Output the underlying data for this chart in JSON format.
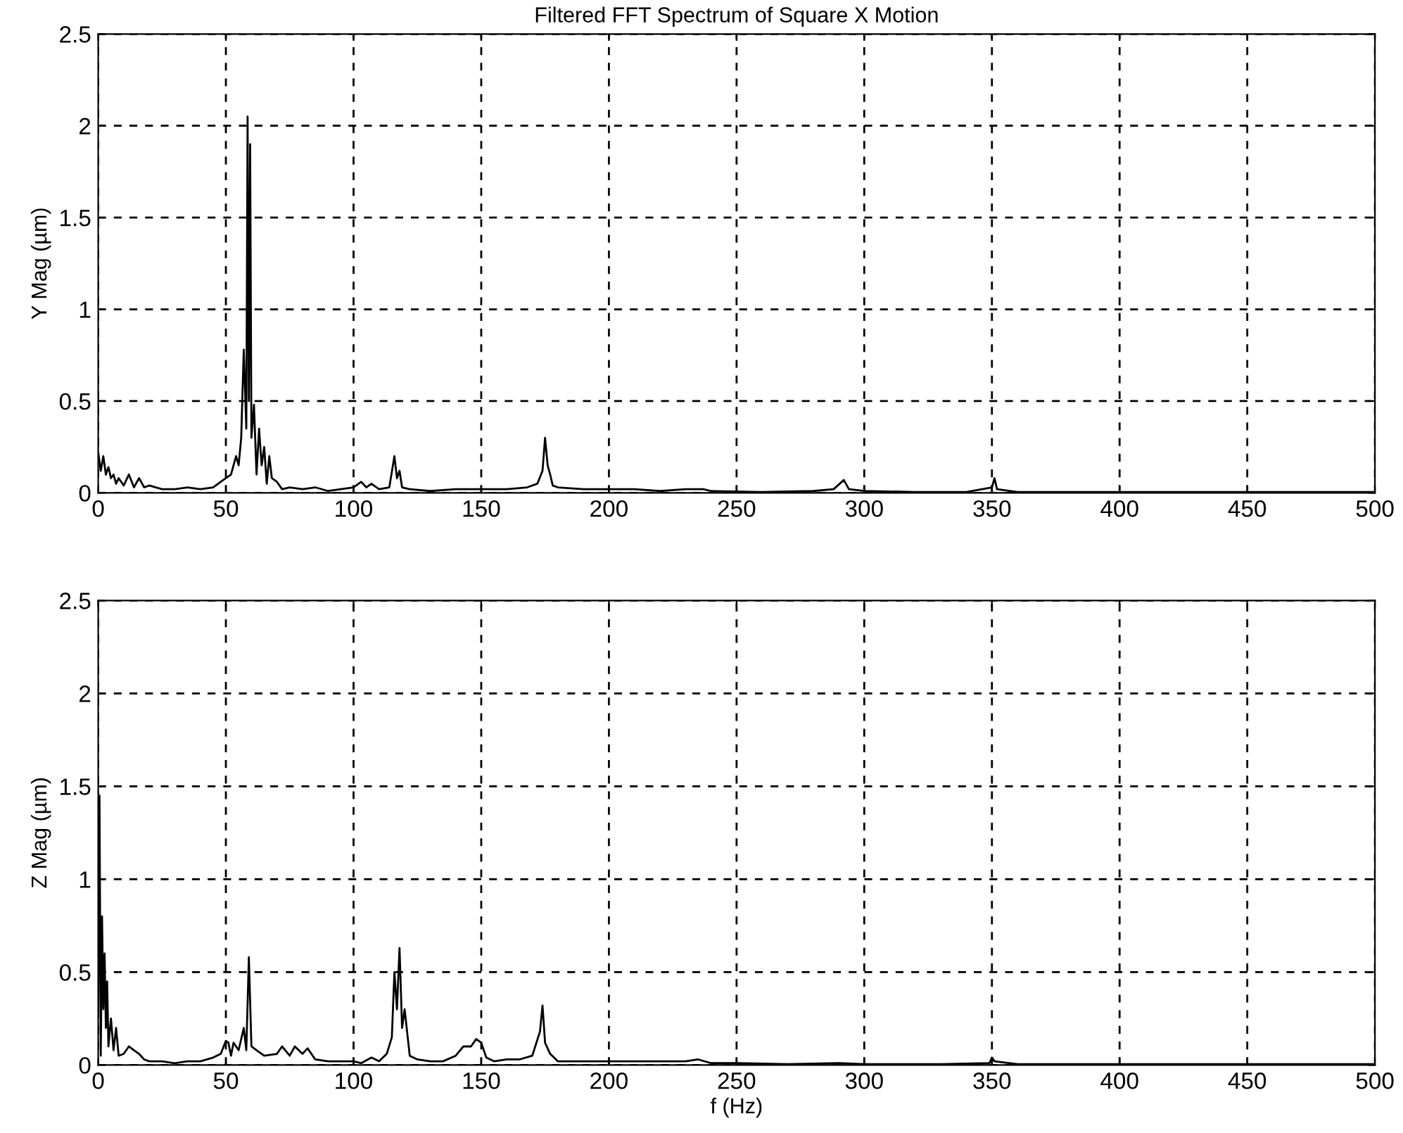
{
  "chart_data": [
    {
      "type": "line",
      "title": "Filtered FFT Spectrum of Square X Motion",
      "ylabel": "Y Mag (µm)",
      "xlim": [
        0,
        500
      ],
      "ylim": [
        0,
        2.5
      ],
      "xticks": [
        0,
        50,
        100,
        150,
        200,
        250,
        300,
        350,
        400,
        450,
        500
      ],
      "yticks": [
        0,
        0.5,
        1,
        1.5,
        2,
        2.5
      ],
      "grid": true,
      "line_style": "solid",
      "series": [
        {
          "color": "#000000",
          "x": [
            0,
            1,
            2,
            3,
            4,
            5,
            6,
            7,
            8,
            10,
            12,
            14,
            16,
            18,
            20,
            25,
            30,
            35,
            40,
            45,
            48,
            50,
            52,
            54,
            55,
            56,
            57,
            58,
            58.5,
            59,
            59.5,
            60,
            61,
            62,
            63,
            64,
            65,
            66,
            67,
            68,
            70,
            72,
            75,
            80,
            85,
            90,
            95,
            100,
            103,
            105,
            107,
            110,
            114,
            116,
            117,
            118,
            119,
            122,
            130,
            140,
            150,
            160,
            168,
            172,
            174,
            175,
            176,
            177,
            178,
            180,
            190,
            200,
            210,
            220,
            230,
            237,
            240,
            260,
            280,
            288,
            292,
            294,
            300,
            320,
            340,
            350,
            351,
            352,
            360,
            400,
            450,
            500
          ],
          "values": [
            0.22,
            0.12,
            0.2,
            0.1,
            0.14,
            0.08,
            0.1,
            0.05,
            0.08,
            0.04,
            0.1,
            0.03,
            0.08,
            0.03,
            0.04,
            0.02,
            0.02,
            0.03,
            0.02,
            0.03,
            0.06,
            0.08,
            0.1,
            0.2,
            0.15,
            0.3,
            0.78,
            0.35,
            2.05,
            0.5,
            1.9,
            0.3,
            0.48,
            0.1,
            0.35,
            0.15,
            0.25,
            0.05,
            0.2,
            0.08,
            0.06,
            0.02,
            0.03,
            0.02,
            0.03,
            0.01,
            0.02,
            0.03,
            0.06,
            0.03,
            0.05,
            0.02,
            0.03,
            0.2,
            0.08,
            0.12,
            0.03,
            0.02,
            0.01,
            0.02,
            0.02,
            0.02,
            0.03,
            0.05,
            0.12,
            0.3,
            0.15,
            0.1,
            0.04,
            0.03,
            0.02,
            0.02,
            0.02,
            0.01,
            0.02,
            0.02,
            0.01,
            0.005,
            0.01,
            0.02,
            0.07,
            0.02,
            0.01,
            0.005,
            0.005,
            0.03,
            0.08,
            0.02,
            0.005,
            0.005,
            0.005,
            0.005
          ]
        }
      ]
    },
    {
      "type": "line",
      "xlabel": "f (Hz)",
      "ylabel": "Z Mag (µm)",
      "xlim": [
        0,
        500
      ],
      "ylim": [
        0,
        2.5
      ],
      "xticks": [
        0,
        50,
        100,
        150,
        200,
        250,
        300,
        350,
        400,
        450,
        500
      ],
      "yticks": [
        0,
        0.5,
        1,
        1.5,
        2,
        2.5
      ],
      "grid": true,
      "line_style": "solid",
      "series": [
        {
          "color": "#000000",
          "x": [
            0,
            0.5,
            1,
            1.5,
            2,
            2.5,
            3,
            3.5,
            4,
            5,
            6,
            7,
            8,
            10,
            12,
            14,
            16,
            18,
            20,
            25,
            30,
            35,
            40,
            45,
            48,
            50,
            51,
            52,
            53,
            55,
            57,
            58,
            59,
            60,
            62,
            65,
            70,
            72,
            75,
            77,
            80,
            82,
            85,
            90,
            95,
            100,
            103,
            107,
            110,
            113,
            115,
            116,
            117,
            118,
            119,
            120,
            122,
            125,
            130,
            135,
            140,
            143,
            146,
            148,
            150,
            152,
            155,
            160,
            165,
            170,
            173,
            174,
            175,
            177,
            180,
            190,
            200,
            210,
            220,
            230,
            235,
            240,
            250,
            270,
            290,
            300,
            330,
            349,
            350,
            351,
            360,
            400,
            450,
            500
          ],
          "values": [
            0.3,
            1.45,
            0.05,
            0.8,
            0.3,
            0.6,
            0.2,
            0.45,
            0.1,
            0.25,
            0.08,
            0.2,
            0.05,
            0.06,
            0.1,
            0.08,
            0.06,
            0.03,
            0.02,
            0.02,
            0.01,
            0.02,
            0.02,
            0.04,
            0.06,
            0.13,
            0.12,
            0.05,
            0.12,
            0.08,
            0.2,
            0.08,
            0.58,
            0.1,
            0.08,
            0.05,
            0.06,
            0.1,
            0.05,
            0.1,
            0.06,
            0.09,
            0.03,
            0.02,
            0.02,
            0.02,
            0.01,
            0.04,
            0.02,
            0.06,
            0.15,
            0.5,
            0.3,
            0.63,
            0.2,
            0.3,
            0.05,
            0.03,
            0.02,
            0.02,
            0.05,
            0.1,
            0.1,
            0.14,
            0.12,
            0.04,
            0.02,
            0.03,
            0.03,
            0.05,
            0.18,
            0.32,
            0.12,
            0.06,
            0.02,
            0.02,
            0.02,
            0.02,
            0.02,
            0.02,
            0.03,
            0.01,
            0.01,
            0.005,
            0.01,
            0.005,
            0.005,
            0.01,
            0.04,
            0.02,
            0.005,
            0.005,
            0.005,
            0.005
          ]
        }
      ]
    }
  ]
}
